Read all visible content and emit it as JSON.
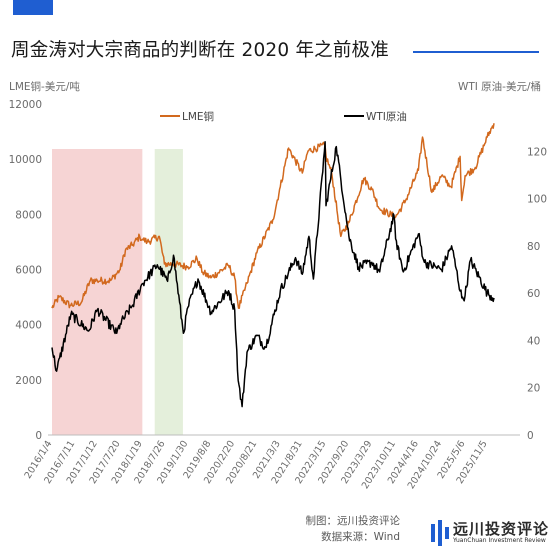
{
  "title": "周金涛对大宗商品的判断在 2020 年之前极准",
  "source": {
    "maker": "制图：远川投资评论",
    "data_source": "数据来源：Wind"
  },
  "logo": {
    "name_zh": "远川投资评论",
    "name_en": "YuanChuan Investment Review"
  },
  "colors": {
    "lme": "#d2691e",
    "wti": "#000000",
    "red_band": "#f6d4d4",
    "green_band": "#e4efdb",
    "accent": "#1f5ed1"
  },
  "chart_data": {
    "type": "line",
    "left_axis": {
      "label": "LME铜-美元/吨",
      "min": 0,
      "max": 12000,
      "ticks": [
        "0",
        "2000",
        "4000",
        "6000",
        "8000",
        "10000",
        "12000"
      ]
    },
    "right_axis": {
      "label": "WTI 原油-美元/桶",
      "min": 0,
      "max": 140,
      "ticks": [
        "0",
        "20",
        "40",
        "60",
        "80",
        "100",
        "120"
      ]
    },
    "x_range": [
      "2016-01-04",
      "2025-12-31"
    ],
    "x_ticks": [
      "2016/1/4",
      "2016/7/11",
      "2017/1/12",
      "2017/7/20",
      "2018/1/19",
      "2018/7/26",
      "2019/1/30",
      "2019/8/8",
      "2020/2/20",
      "2020/8/21",
      "2021/3/3",
      "2021/8/31",
      "2022/3/15",
      "2022/9/20",
      "2023/3/29",
      "2023/10/11",
      "2024/4/16",
      "2024/10/24",
      "2025/5/6",
      "2025/11/5"
    ],
    "bands": [
      {
        "start": "2016-01-04",
        "end": "2018-01-19",
        "color": "red"
      },
      {
        "start": "2018-05-01",
        "end": "2018-12-20",
        "color": "green"
      }
    ],
    "series": [
      {
        "name": "LME铜",
        "axis": "left",
        "points": [
          [
            "2016-01-04",
            4600
          ],
          [
            "2016-03-01",
            5000
          ],
          [
            "2016-06-01",
            4700
          ],
          [
            "2016-09-01",
            4800
          ],
          [
            "2016-11-15",
            5600
          ],
          [
            "2017-01-12",
            5600
          ],
          [
            "2017-05-01",
            5600
          ],
          [
            "2017-07-20",
            6000
          ],
          [
            "2017-09-01",
            6700
          ],
          [
            "2017-11-01",
            6900
          ],
          [
            "2017-12-28",
            7200
          ],
          [
            "2018-01-19",
            7100
          ],
          [
            "2018-03-01",
            7000
          ],
          [
            "2018-06-08",
            7200
          ],
          [
            "2018-07-20",
            6200
          ],
          [
            "2018-10-01",
            6200
          ],
          [
            "2019-01-30",
            6100
          ],
          [
            "2019-04-15",
            6400
          ],
          [
            "2019-06-01",
            5900
          ],
          [
            "2019-08-08",
            5700
          ],
          [
            "2019-12-31",
            6150
          ],
          [
            "2020-02-20",
            5700
          ],
          [
            "2020-03-23",
            4600
          ],
          [
            "2020-06-01",
            5500
          ],
          [
            "2020-08-21",
            6600
          ],
          [
            "2020-12-31",
            7800
          ],
          [
            "2021-03-03",
            9000
          ],
          [
            "2021-05-10",
            10400
          ],
          [
            "2021-08-31",
            9500
          ],
          [
            "2021-10-18",
            10300
          ],
          [
            "2022-03-07",
            10500
          ],
          [
            "2022-03-15",
            10100
          ],
          [
            "2022-05-01",
            9500
          ],
          [
            "2022-07-15",
            7200
          ],
          [
            "2022-09-20",
            7700
          ],
          [
            "2023-01-20",
            9300
          ],
          [
            "2023-03-29",
            8900
          ],
          [
            "2023-06-01",
            8200
          ],
          [
            "2023-10-11",
            7900
          ],
          [
            "2024-01-01",
            8500
          ],
          [
            "2024-04-16",
            9600
          ],
          [
            "2024-05-20",
            10800
          ],
          [
            "2024-08-05",
            8800
          ],
          [
            "2024-10-24",
            9400
          ],
          [
            "2025-01-10",
            9000
          ],
          [
            "2025-03-26",
            10100
          ],
          [
            "2025-04-08",
            8500
          ],
          [
            "2025-05-06",
            9400
          ],
          [
            "2025-07-30",
            9700
          ],
          [
            "2025-11-05",
            10800
          ],
          [
            "2025-12-31",
            11300
          ]
        ]
      },
      {
        "name": "WTI原油",
        "axis": "right",
        "points": [
          [
            "2016-01-04",
            37
          ],
          [
            "2016-02-11",
            27
          ],
          [
            "2016-06-08",
            51
          ],
          [
            "2016-11-01",
            44
          ],
          [
            "2017-01-12",
            53
          ],
          [
            "2017-06-21",
            43
          ],
          [
            "2017-07-20",
            47
          ],
          [
            "2017-11-01",
            55
          ],
          [
            "2018-01-19",
            64
          ],
          [
            "2018-05-22",
            72
          ],
          [
            "2018-08-15",
            65
          ],
          [
            "2018-10-03",
            76
          ],
          [
            "2018-12-24",
            43
          ],
          [
            "2019-01-30",
            54
          ],
          [
            "2019-04-23",
            66
          ],
          [
            "2019-08-08",
            52
          ],
          [
            "2019-12-31",
            61
          ],
          [
            "2020-02-20",
            53
          ],
          [
            "2020-03-20",
            23
          ],
          [
            "2020-04-21",
            12
          ],
          [
            "2020-06-01",
            35
          ],
          [
            "2020-08-21",
            42
          ],
          [
            "2020-11-01",
            37
          ],
          [
            "2021-03-03",
            61
          ],
          [
            "2021-07-06",
            75
          ],
          [
            "2021-08-31",
            68
          ],
          [
            "2021-10-25",
            84
          ],
          [
            "2021-12-01",
            66
          ],
          [
            "2022-03-08",
            124
          ],
          [
            "2022-03-15",
            97
          ],
          [
            "2022-06-08",
            122
          ],
          [
            "2022-09-20",
            84
          ],
          [
            "2022-12-09",
            71
          ],
          [
            "2023-03-29",
            73
          ],
          [
            "2023-06-01",
            69
          ],
          [
            "2023-09-27",
            93
          ],
          [
            "2023-10-11",
            83
          ],
          [
            "2023-12-13",
            69
          ],
          [
            "2024-04-16",
            85
          ],
          [
            "2024-06-04",
            73
          ],
          [
            "2024-10-24",
            70
          ],
          [
            "2025-01-15",
            80
          ],
          [
            "2025-04-09",
            58
          ],
          [
            "2025-05-06",
            59
          ],
          [
            "2025-06-20",
            74
          ],
          [
            "2025-11-05",
            60
          ],
          [
            "2025-12-31",
            58
          ]
        ]
      }
    ]
  }
}
